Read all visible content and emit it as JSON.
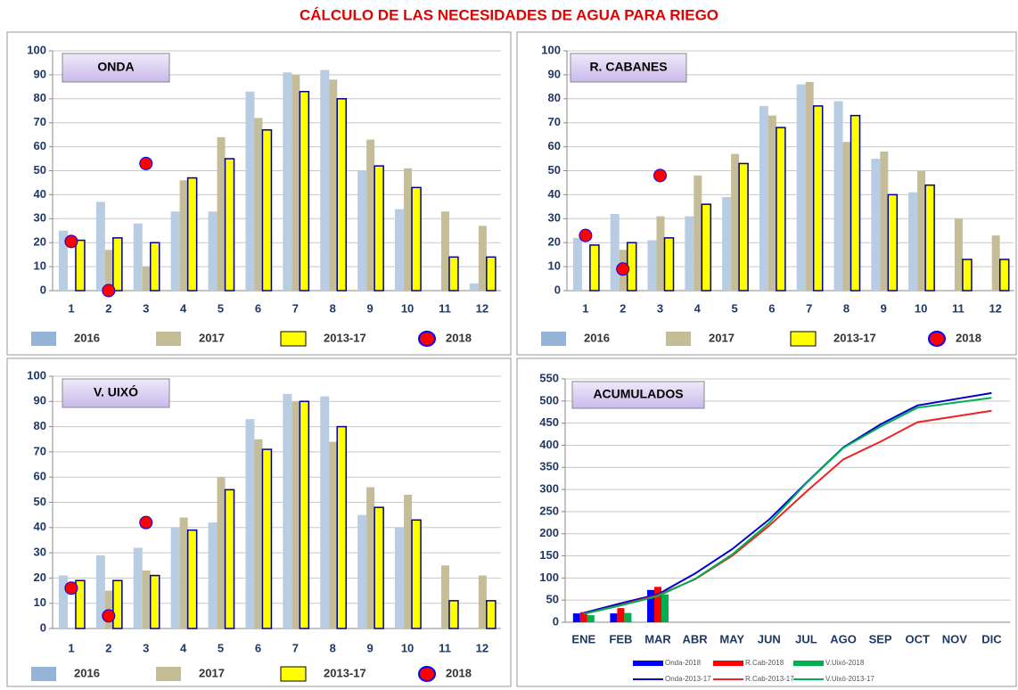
{
  "page_title": "CÁLCULO DE LAS NECESIDADES DE AGUA PARA RIEGO",
  "chart_data": [
    {
      "type": "bar",
      "title": "ONDA",
      "categories": [
        "1",
        "2",
        "3",
        "4",
        "5",
        "6",
        "7",
        "8",
        "9",
        "10",
        "11",
        "12"
      ],
      "ylim": [
        0,
        100
      ],
      "yticks": [
        0,
        10,
        20,
        30,
        40,
        50,
        60,
        70,
        80,
        90,
        100
      ],
      "grid": true,
      "series": [
        {
          "name": "2016",
          "color": "#b8cce4",
          "values": [
            25,
            37,
            28,
            33,
            33,
            83,
            91,
            92,
            50,
            34,
            0,
            3
          ]
        },
        {
          "name": "2017",
          "color": "#c4bd97",
          "values": [
            null,
            17,
            10,
            46,
            64,
            72,
            90,
            88,
            63,
            51,
            33,
            27
          ]
        },
        {
          "name": "2013-17",
          "color": "#ffff00",
          "edge": "#00008b",
          "values": [
            21,
            22,
            20,
            47,
            55,
            67,
            83,
            80,
            52,
            43,
            14,
            14
          ]
        },
        {
          "name": "2018",
          "color": "#ff0000",
          "edge": "#0000ff",
          "marker": "dot",
          "values": [
            20.5,
            0,
            53,
            null,
            null,
            null,
            null,
            null,
            null,
            null,
            null,
            null
          ]
        }
      ]
    },
    {
      "type": "bar",
      "title": "R. CABANES",
      "categories": [
        "1",
        "2",
        "3",
        "4",
        "5",
        "6",
        "7",
        "8",
        "9",
        "10",
        "11",
        "12"
      ],
      "ylim": [
        0,
        100
      ],
      "yticks": [
        0,
        10,
        20,
        30,
        40,
        50,
        60,
        70,
        80,
        90,
        100
      ],
      "grid": true,
      "series": [
        {
          "name": "2016",
          "color": "#b8cce4",
          "values": [
            22,
            32,
            21,
            31,
            39,
            77,
            86,
            79,
            55,
            41,
            0,
            0
          ]
        },
        {
          "name": "2017",
          "color": "#c4bd97",
          "values": [
            null,
            17,
            31,
            48,
            57,
            73,
            87,
            62,
            58,
            50,
            30,
            23
          ]
        },
        {
          "name": "2013-17",
          "color": "#ffff00",
          "edge": "#00008b",
          "values": [
            19,
            20,
            22,
            36,
            53,
            68,
            77,
            73,
            40,
            44,
            13,
            13
          ]
        },
        {
          "name": "2018",
          "color": "#ff0000",
          "edge": "#0000ff",
          "marker": "dot",
          "values": [
            23,
            9,
            48,
            null,
            null,
            null,
            null,
            null,
            null,
            null,
            null,
            null
          ]
        }
      ]
    },
    {
      "type": "bar",
      "title": "V. UIXÓ",
      "categories": [
        "1",
        "2",
        "3",
        "4",
        "5",
        "6",
        "7",
        "8",
        "9",
        "10",
        "11",
        "12"
      ],
      "ylim": [
        0,
        100
      ],
      "yticks": [
        0,
        10,
        20,
        30,
        40,
        50,
        60,
        70,
        80,
        90,
        100
      ],
      "grid": true,
      "series": [
        {
          "name": "2016",
          "color": "#b8cce4",
          "values": [
            21,
            29,
            32,
            40,
            42,
            83,
            93,
            92,
            45,
            40,
            0,
            0
          ]
        },
        {
          "name": "2017",
          "color": "#c4bd97",
          "values": [
            null,
            15,
            23,
            44,
            60,
            75,
            90,
            74,
            56,
            53,
            25,
            21
          ]
        },
        {
          "name": "2013-17",
          "color": "#ffff00",
          "edge": "#00008b",
          "values": [
            19,
            19,
            21,
            39,
            55,
            71,
            90,
            80,
            48,
            43,
            11,
            11
          ]
        },
        {
          "name": "2018",
          "color": "#ff0000",
          "edge": "#0000ff",
          "marker": "dot",
          "values": [
            16,
            5,
            42,
            null,
            null,
            null,
            null,
            null,
            null,
            null,
            null,
            null
          ]
        }
      ]
    },
    {
      "type": "line",
      "title": "ACUMULADOS",
      "categories": [
        "ENE",
        "FEB",
        "MAR",
        "ABR",
        "MAY",
        "JUN",
        "JUL",
        "AGO",
        "SEP",
        "OCT",
        "NOV",
        "DIC"
      ],
      "ylim": [
        0,
        550
      ],
      "yticks": [
        0,
        50,
        100,
        150,
        200,
        250,
        300,
        350,
        400,
        450,
        500,
        550
      ],
      "grid": true,
      "series": [
        {
          "name": "Onda-2018",
          "color": "#0000ff",
          "kind": "bar",
          "values": [
            20,
            20,
            73,
            null,
            null,
            null,
            null,
            null,
            null,
            null,
            null,
            null
          ]
        },
        {
          "name": "R.Cab-2018",
          "color": "#ff0000",
          "kind": "bar",
          "values": [
            23,
            32,
            80,
            null,
            null,
            null,
            null,
            null,
            null,
            null,
            null,
            null
          ]
        },
        {
          "name": "V.Uixó-2018",
          "color": "#00b050",
          "kind": "bar",
          "values": [
            16,
            21,
            63,
            null,
            null,
            null,
            null,
            null,
            null,
            null,
            null,
            null
          ]
        },
        {
          "name": "Onda-2013-17",
          "color": "#0000cc",
          "kind": "line",
          "values": [
            21,
            43,
            63,
            110,
            165,
            232,
            315,
            395,
            447,
            490,
            504,
            518
          ]
        },
        {
          "name": "R.Cab-2013-17",
          "color": "#ee2222",
          "kind": "line",
          "values": [
            19,
            39,
            61,
            97,
            150,
            218,
            295,
            368,
            408,
            452,
            465,
            478
          ]
        },
        {
          "name": "V.Uixó-2013-17",
          "color": "#00b050",
          "kind": "line",
          "values": [
            19,
            38,
            59,
            98,
            153,
            224,
            314,
            394,
            442,
            485,
            496,
            507
          ]
        }
      ]
    }
  ]
}
